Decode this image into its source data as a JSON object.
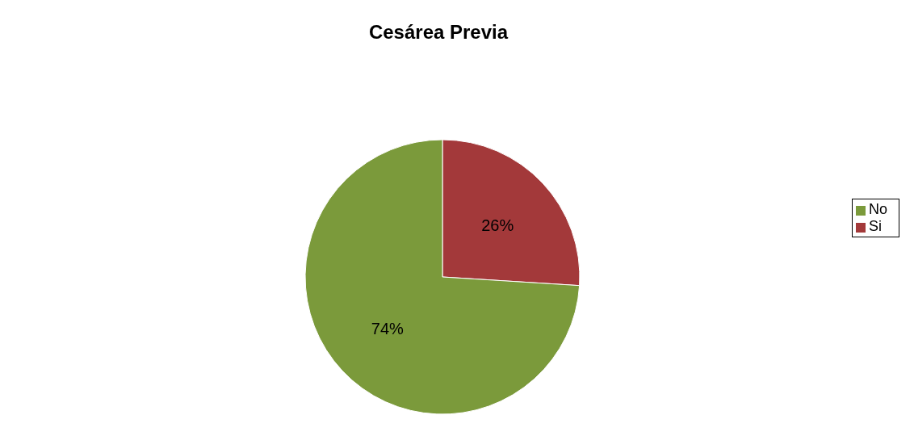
{
  "chart_data": {
    "type": "pie",
    "title": "Cesárea Previa",
    "categories": [
      "Si",
      "No"
    ],
    "values": [
      26,
      74
    ],
    "value_labels": [
      "26%",
      "74%"
    ],
    "colors": [
      "#a3393a",
      "#7b9a3b"
    ],
    "legend": "right"
  }
}
